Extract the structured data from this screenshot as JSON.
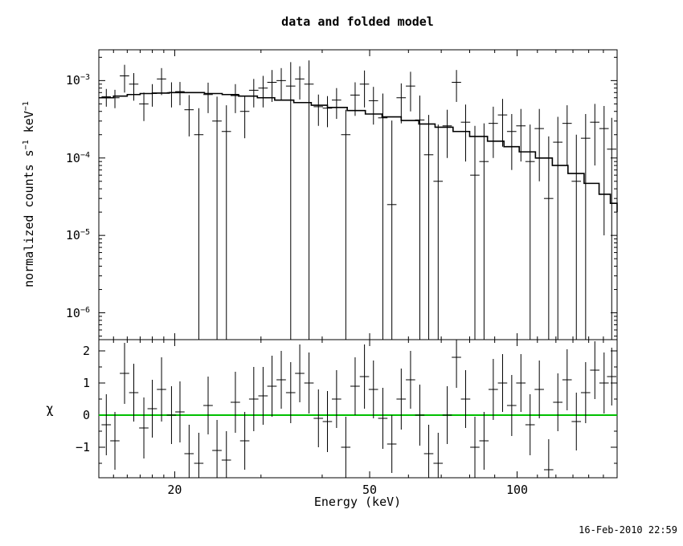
{
  "footer": {
    "timestamp": "16-Feb-2010 22:59"
  },
  "chart_data": {
    "type": "scatter",
    "title": "data and folded model",
    "xlabel": "Energy (keV)",
    "ylabel": "normalized counts s-1 keV-1",
    "ylabel_parts": {
      "b1": "normalized counts s",
      "s1": "−1",
      "b2": " keV",
      "s2": "−1"
    },
    "residual_ylabel": "χ",
    "x_scale": "log",
    "x_range": [
      14,
      160
    ],
    "x_ticks": [
      {
        "value": 20,
        "label": "20"
      },
      {
        "value": 50,
        "label": "50"
      },
      {
        "value": 100,
        "label": "100"
      }
    ],
    "x_minor_ticks": [
      15,
      16,
      17,
      18,
      19,
      30,
      40,
      60,
      70,
      80,
      90,
      110,
      120,
      130,
      140,
      150
    ],
    "top_panel": {
      "y_scale": "log",
      "y_range": [
        4.5e-07,
        0.0025
      ],
      "y_ticks": [
        {
          "value": 0.001,
          "base": "10",
          "exp": "−3"
        },
        {
          "value": 0.0001,
          "base": "10",
          "exp": "−4"
        },
        {
          "value": 1e-05,
          "base": "10",
          "exp": "−5"
        },
        {
          "value": 1e-06,
          "base": "10",
          "exp": "−6"
        }
      ]
    },
    "bottom_panel": {
      "y_scale": "linear",
      "y_range": [
        -1.95,
        2.35
      ],
      "y_ticks": [
        {
          "value": 2,
          "label": "2"
        },
        {
          "value": 1,
          "label": "1"
        },
        {
          "value": 0,
          "label": "0"
        },
        {
          "value": -1,
          "label": "−1"
        }
      ],
      "y_minor_ticks": [
        -1.5,
        -0.5,
        0.5,
        1.5
      ],
      "zero_line_color": "#00c000"
    },
    "model_steps": [
      [
        14,
        0.0006
      ],
      [
        15,
        0.00063
      ],
      [
        16,
        0.00066
      ],
      [
        17,
        0.00068
      ],
      [
        18,
        0.00069
      ],
      [
        19.5,
        0.0007
      ],
      [
        21,
        0.0007
      ],
      [
        23,
        0.00068
      ],
      [
        25,
        0.00066
      ],
      [
        27,
        0.00063
      ],
      [
        29.5,
        0.0006
      ],
      [
        32,
        0.00056
      ],
      [
        35,
        0.00052
      ],
      [
        38,
        0.00048
      ],
      [
        41,
        0.00045
      ],
      [
        45,
        0.00041
      ],
      [
        49,
        0.00037
      ],
      [
        53,
        0.00034
      ],
      [
        58,
        0.000305
      ],
      [
        63,
        0.000275
      ],
      [
        68,
        0.00025
      ],
      [
        74,
        0.00022
      ],
      [
        80,
        0.00019
      ],
      [
        87,
        0.000165
      ],
      [
        94,
        0.00014
      ],
      [
        101,
        0.00012
      ],
      [
        109,
        0.0001
      ],
      [
        118,
        8e-05
      ],
      [
        127,
        6.3e-05
      ],
      [
        137,
        4.7e-05
      ],
      [
        147,
        3.4e-05
      ],
      [
        155,
        2.6e-05
      ],
      [
        160,
        2e-05
      ]
    ],
    "point_fields": [
      "energy_keV",
      "half_width_keV",
      "rate",
      "rate_error",
      "chi",
      "chi_error"
    ],
    "points": [
      [
        14.5,
        0.32,
        0.00062,
        0.00016,
        -0.3,
        0.95
      ],
      [
        15.1,
        0.33,
        0.0006,
        0.00016,
        -0.8,
        0.9
      ],
      [
        15.8,
        0.35,
        0.00115,
        0.00045,
        1.3,
        0.95
      ],
      [
        16.5,
        0.36,
        0.0009,
        0.00035,
        0.7,
        0.9
      ],
      [
        17.3,
        0.38,
        0.0005,
        0.0002,
        -0.4,
        0.95
      ],
      [
        18.0,
        0.4,
        0.00068,
        0.00022,
        0.2,
        0.9
      ],
      [
        18.8,
        0.41,
        0.00105,
        0.0004,
        0.8,
        1.0
      ],
      [
        19.7,
        0.43,
        0.0007,
        0.00025,
        0.0,
        0.9
      ],
      [
        20.5,
        0.45,
        0.00072,
        0.00024,
        0.1,
        0.95
      ],
      [
        21.4,
        0.47,
        0.00042,
        0.00023,
        -1.2,
        0.9
      ],
      [
        22.4,
        0.49,
        0.0002,
        0.00024,
        -1.5,
        0.95
      ],
      [
        23.4,
        0.52,
        0.00066,
        0.00028,
        0.3,
        0.9
      ],
      [
        24.4,
        0.54,
        0.0003,
        0.00032,
        -1.1,
        0.95
      ],
      [
        25.5,
        0.56,
        0.00022,
        0.00026,
        -1.4,
        0.9
      ],
      [
        26.6,
        0.59,
        0.00064,
        0.00026,
        0.4,
        0.95
      ],
      [
        27.8,
        0.61,
        0.0004,
        0.00022,
        -0.8,
        0.9
      ],
      [
        29.0,
        0.64,
        0.00075,
        0.0003,
        0.5,
        1.0
      ],
      [
        30.3,
        0.67,
        0.0008,
        0.00035,
        0.6,
        0.9
      ],
      [
        31.6,
        0.7,
        0.00095,
        0.00042,
        0.9,
        0.95
      ],
      [
        33.0,
        0.73,
        0.001,
        0.00045,
        1.1,
        0.9
      ],
      [
        34.5,
        0.76,
        0.00085,
        0.00088,
        0.7,
        0.95
      ],
      [
        36.0,
        0.79,
        0.00105,
        0.00048,
        1.3,
        0.9
      ],
      [
        37.6,
        0.83,
        0.0009,
        0.00092,
        1.0,
        0.95
      ],
      [
        39.3,
        0.87,
        0.00046,
        0.0002,
        -0.1,
        0.9
      ],
      [
        41.0,
        0.9,
        0.00044,
        0.00019,
        -0.2,
        0.95
      ],
      [
        42.8,
        0.94,
        0.00056,
        0.00024,
        0.5,
        0.9
      ],
      [
        44.7,
        0.98,
        0.0002,
        0.00022,
        -1.0,
        0.95
      ],
      [
        46.7,
        1.03,
        0.00065,
        0.0003,
        0.9,
        0.9
      ],
      [
        48.8,
        1.07,
        0.0009,
        0.00045,
        1.2,
        1.0
      ],
      [
        50.9,
        1.12,
        0.00055,
        0.00028,
        0.8,
        0.9
      ],
      [
        53.2,
        1.17,
        0.00033,
        0.00035,
        -0.1,
        0.95
      ],
      [
        55.5,
        1.22,
        2.5e-05,
        0.00028,
        -0.9,
        0.9
      ],
      [
        58.0,
        1.28,
        0.0006,
        0.00032,
        0.5,
        0.95
      ],
      [
        60.6,
        1.33,
        0.00085,
        0.00045,
        1.1,
        0.9
      ],
      [
        63.3,
        1.39,
        0.00031,
        0.00033,
        0.0,
        0.95
      ],
      [
        66.0,
        1.45,
        0.00011,
        0.00025,
        -1.2,
        0.9
      ],
      [
        69.0,
        1.52,
        5e-05,
        0.00022,
        -1.5,
        0.95
      ],
      [
        72.0,
        1.58,
        0.00026,
        0.00016,
        0.0,
        0.9
      ],
      [
        75.2,
        1.65,
        0.00095,
        0.00042,
        1.8,
        0.95
      ],
      [
        78.5,
        1.73,
        0.00029,
        0.0002,
        0.5,
        0.9
      ],
      [
        82.0,
        1.8,
        6e-05,
        0.0002,
        -1.0,
        0.95
      ],
      [
        85.6,
        1.88,
        9e-05,
        0.00019,
        -0.8,
        0.9
      ],
      [
        89.4,
        1.97,
        0.00028,
        0.00018,
        0.8,
        0.95
      ],
      [
        93.4,
        2.05,
        0.00036,
        0.00022,
        1.0,
        0.9
      ],
      [
        97.5,
        2.15,
        0.00022,
        0.00015,
        0.3,
        0.95
      ],
      [
        101.8,
        2.24,
        0.00026,
        0.00017,
        1.0,
        0.9
      ],
      [
        106.3,
        2.34,
        9e-05,
        0.00018,
        -0.3,
        0.95
      ],
      [
        111.0,
        2.44,
        0.00024,
        0.00019,
        0.8,
        0.9
      ],
      [
        116.0,
        2.55,
        3e-05,
        0.00016,
        -1.7,
        0.95
      ],
      [
        121.1,
        2.67,
        0.00016,
        0.00018,
        0.4,
        0.9
      ],
      [
        126.5,
        2.78,
        0.00028,
        0.0002,
        1.1,
        0.95
      ],
      [
        132.1,
        2.91,
        5e-05,
        0.00015,
        -0.2,
        0.9
      ],
      [
        138.0,
        3.04,
        0.00018,
        0.00019,
        0.7,
        0.95
      ],
      [
        144.1,
        3.17,
        0.00029,
        0.00021,
        1.4,
        0.9
      ],
      [
        150.5,
        3.31,
        0.00024,
        0.00023,
        1.0,
        0.95
      ],
      [
        156.0,
        3.4,
        0.00013,
        0.0002,
        1.2,
        0.9
      ]
    ]
  }
}
